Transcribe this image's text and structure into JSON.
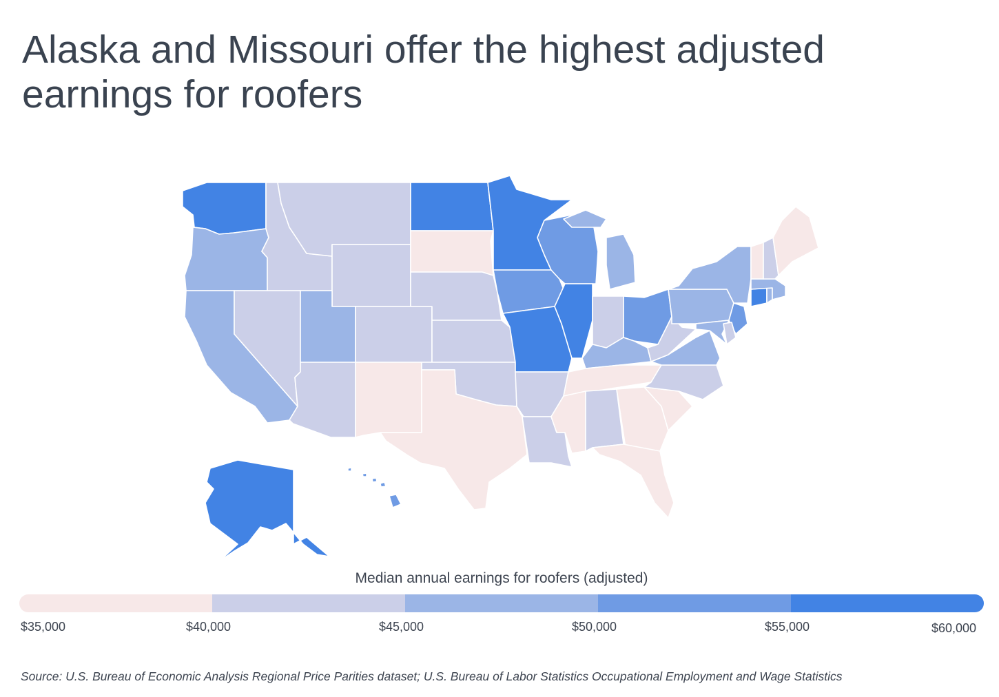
{
  "title": "Alaska and Missouri offer the highest adjusted earnings for roofers",
  "legend": {
    "title": "Median annual earnings for roofers (adjusted)",
    "ticks": [
      "$35,000",
      "$40,000",
      "$45,000",
      "$50,000",
      "$55,000",
      "$60,000"
    ],
    "colors": [
      "#f7e8e8",
      "#cbcfe8",
      "#9bb5e6",
      "#6f9be4",
      "#4283e4"
    ]
  },
  "source": "Source:  U.S. Bureau of Economic Analysis Regional Price Parities dataset; U.S. Bureau of Labor Statistics Occupational Employment and Wage Statistics",
  "chart_data": {
    "type": "choropleth",
    "value_label": "Median annual earnings for roofers (adjusted)",
    "bins": [
      {
        "min": 35000,
        "max": 40000,
        "color": "#f7e8e8"
      },
      {
        "min": 40000,
        "max": 45000,
        "color": "#cbcfe8"
      },
      {
        "min": 45000,
        "max": 50000,
        "color": "#9bb5e6"
      },
      {
        "min": 50000,
        "max": 55000,
        "color": "#6f9be4"
      },
      {
        "min": 55000,
        "max": 60000,
        "color": "#4283e4"
      }
    ],
    "states": {
      "WA": 4,
      "OR": 2,
      "CA": 2,
      "NV": 1,
      "ID": 1,
      "MT": 1,
      "WY": 1,
      "UT": 2,
      "CO": 1,
      "AZ": 1,
      "NM": 0,
      "ND": 4,
      "SD": 0,
      "NE": 1,
      "KS": 1,
      "OK": 1,
      "TX": 0,
      "MN": 4,
      "IA": 3,
      "MO": 4,
      "AR": 1,
      "LA": 1,
      "WI": 3,
      "IL": 4,
      "MI": 2,
      "IN": 1,
      "OH": 3,
      "KY": 2,
      "TN": 0,
      "MS": 0,
      "AL": 1,
      "GA": 0,
      "FL": 0,
      "SC": 0,
      "NC": 1,
      "VA": 2,
      "WV": 1,
      "PA": 2,
      "NY": 2,
      "NJ": 3,
      "DE": 1,
      "MD": 2,
      "CT": 4,
      "RI": 2,
      "MA": 2,
      "VT": 0,
      "NH": 1,
      "ME": 0,
      "AK": 4,
      "HI": 3
    }
  }
}
